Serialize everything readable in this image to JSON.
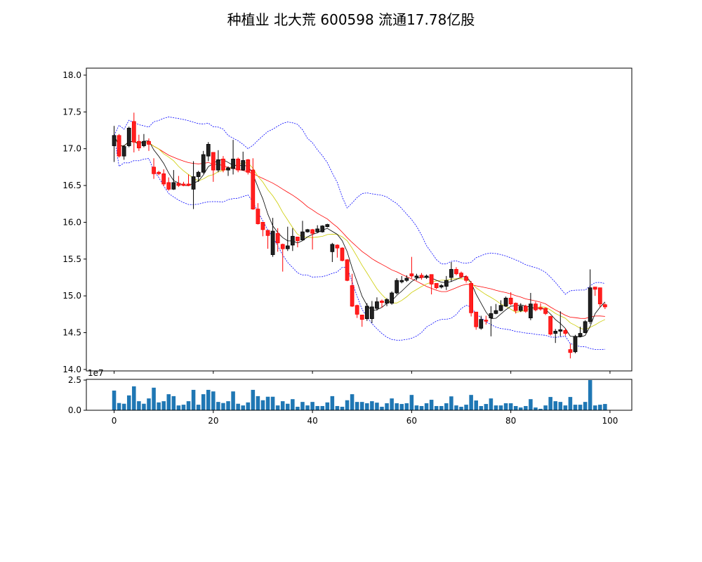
{
  "chart_data": {
    "type": "candlestick",
    "title": "种植业 北大荒 600598 流通17.78亿股",
    "up_color": "#000000",
    "down_color": "#ff0000",
    "ma_colors": {
      "ma5": "#000000",
      "ma10": "#cccc00",
      "ma20": "#ff0000",
      "boll": "#0000ff"
    },
    "volume_color": "#1f77b4",
    "xlim": [
      -5.6,
      104.4
    ],
    "ylim": [
      13.98,
      18.095
    ],
    "yticks": [
      "14.0",
      "14.5",
      "15.0",
      "15.5",
      "16.0",
      "16.5",
      "17.0",
      "17.5",
      "18.0"
    ],
    "xticks": [
      "0",
      "20",
      "40",
      "60",
      "80",
      "100"
    ],
    "volume_ylim": [
      0,
      2.56
    ],
    "volume_yticks": [
      "0.0",
      "2.5"
    ],
    "volume_offset_label": "1e7",
    "ohlc": [
      [
        17.04,
        17.31,
        16.82,
        17.18
      ],
      [
        17.18,
        17.2,
        16.88,
        16.9
      ],
      [
        16.9,
        17.05,
        16.85,
        17.03
      ],
      [
        17.04,
        17.3,
        17.02,
        17.28
      ],
      [
        17.37,
        17.49,
        16.95,
        17.09
      ],
      [
        17.1,
        17.19,
        16.97,
        17.01
      ],
      [
        17.04,
        17.2,
        17.02,
        17.1
      ],
      [
        17.1,
        17.14,
        16.97,
        17.06
      ],
      [
        16.75,
        16.87,
        16.59,
        16.66
      ],
      [
        16.68,
        16.7,
        16.64,
        16.66
      ],
      [
        16.66,
        16.72,
        16.49,
        16.52
      ],
      [
        16.54,
        16.61,
        16.43,
        16.45
      ],
      [
        16.45,
        16.71,
        16.44,
        16.54
      ],
      [
        16.53,
        16.63,
        16.48,
        16.5
      ],
      [
        16.52,
        16.55,
        16.49,
        16.5
      ],
      [
        16.52,
        16.65,
        16.49,
        16.5
      ],
      [
        16.45,
        16.83,
        16.18,
        16.62
      ],
      [
        16.62,
        16.7,
        16.55,
        16.68
      ],
      [
        16.68,
        16.97,
        16.66,
        16.92
      ],
      [
        16.9,
        17.09,
        16.83,
        17.06
      ],
      [
        16.95,
        16.95,
        16.55,
        16.71
      ],
      [
        16.71,
        16.98,
        16.68,
        16.85
      ],
      [
        16.86,
        16.9,
        16.68,
        16.71
      ],
      [
        16.71,
        16.76,
        16.63,
        16.74
      ],
      [
        16.73,
        17.12,
        16.65,
        16.86
      ],
      [
        16.86,
        16.88,
        16.68,
        16.71
      ],
      [
        16.71,
        16.96,
        16.7,
        16.84
      ],
      [
        16.85,
        16.86,
        16.65,
        16.68
      ],
      [
        16.71,
        16.87,
        16.17,
        16.18
      ],
      [
        16.18,
        16.26,
        15.97,
        15.98
      ],
      [
        16.0,
        16.0,
        15.81,
        15.9
      ],
      [
        15.89,
        15.89,
        15.64,
        15.82
      ],
      [
        15.56,
        16.06,
        15.53,
        15.88
      ],
      [
        15.85,
        15.92,
        15.6,
        15.72
      ],
      [
        15.7,
        15.71,
        15.33,
        15.64
      ],
      [
        15.64,
        15.94,
        15.61,
        15.68
      ],
      [
        15.69,
        15.92,
        15.61,
        15.81
      ],
      [
        15.8,
        15.8,
        15.66,
        15.75
      ],
      [
        15.76,
        16.02,
        15.76,
        15.87
      ],
      [
        15.87,
        15.91,
        15.86,
        15.9
      ],
      [
        15.9,
        15.91,
        15.63,
        15.85
      ],
      [
        15.87,
        15.96,
        15.86,
        15.91
      ],
      [
        15.87,
        15.96,
        15.86,
        15.95
      ],
      [
        15.94,
        15.98,
        15.93,
        15.97
      ],
      [
        15.6,
        15.72,
        15.46,
        15.7
      ],
      [
        15.69,
        15.7,
        15.52,
        15.65
      ],
      [
        15.65,
        15.66,
        15.47,
        15.48
      ],
      [
        15.49,
        15.5,
        15.2,
        15.21
      ],
      [
        15.14,
        15.3,
        14.85,
        14.86
      ],
      [
        14.87,
        14.88,
        14.7,
        14.75
      ],
      [
        14.74,
        14.74,
        14.58,
        14.68
      ],
      [
        14.69,
        14.9,
        14.66,
        14.86
      ],
      [
        14.69,
        14.93,
        14.63,
        14.85
      ],
      [
        14.83,
        14.98,
        14.8,
        14.92
      ],
      [
        14.93,
        14.95,
        14.84,
        14.91
      ],
      [
        14.9,
        14.97,
        14.86,
        14.95
      ],
      [
        14.9,
        15.06,
        14.88,
        15.04
      ],
      [
        15.04,
        15.24,
        15.02,
        15.21
      ],
      [
        15.19,
        15.27,
        15.17,
        15.21
      ],
      [
        15.21,
        15.28,
        15.19,
        15.24
      ],
      [
        15.3,
        15.53,
        15.24,
        15.27
      ],
      [
        15.25,
        15.3,
        15.21,
        15.27
      ],
      [
        15.28,
        15.31,
        15.22,
        15.25
      ],
      [
        15.25,
        15.29,
        15.23,
        15.27
      ],
      [
        15.29,
        15.29,
        15.02,
        15.16
      ],
      [
        15.17,
        15.17,
        15.09,
        15.11
      ],
      [
        15.12,
        15.16,
        15.1,
        15.14
      ],
      [
        15.13,
        15.27,
        15.08,
        15.21
      ],
      [
        15.25,
        15.46,
        15.19,
        15.36
      ],
      [
        15.36,
        15.39,
        15.28,
        15.3
      ],
      [
        15.31,
        15.33,
        15.24,
        15.26
      ],
      [
        15.26,
        15.28,
        15.18,
        15.21
      ],
      [
        15.17,
        15.2,
        14.72,
        14.77
      ],
      [
        14.78,
        14.78,
        14.54,
        14.58
      ],
      [
        14.56,
        14.73,
        14.54,
        14.68
      ],
      [
        14.67,
        14.73,
        14.61,
        14.66
      ],
      [
        14.7,
        14.86,
        14.45,
        14.76
      ],
      [
        14.76,
        14.89,
        14.75,
        14.8
      ],
      [
        14.8,
        14.94,
        14.79,
        14.87
      ],
      [
        14.86,
        14.99,
        14.85,
        14.97
      ],
      [
        14.97,
        15.05,
        14.87,
        14.89
      ],
      [
        14.9,
        14.91,
        14.76,
        14.8
      ],
      [
        14.8,
        14.9,
        14.78,
        14.86
      ],
      [
        14.86,
        14.88,
        14.77,
        14.79
      ],
      [
        14.7,
        15.04,
        14.67,
        14.89
      ],
      [
        14.89,
        14.92,
        14.79,
        14.81
      ],
      [
        14.84,
        14.9,
        14.8,
        14.82
      ],
      [
        14.83,
        14.84,
        14.74,
        14.76
      ],
      [
        14.72,
        14.73,
        14.46,
        14.48
      ],
      [
        14.49,
        14.55,
        14.36,
        14.52
      ],
      [
        14.52,
        14.79,
        14.45,
        14.54
      ],
      [
        14.53,
        14.56,
        14.46,
        14.49
      ],
      [
        14.27,
        14.35,
        14.15,
        14.23
      ],
      [
        14.24,
        14.47,
        14.22,
        14.45
      ],
      [
        14.45,
        14.58,
        14.44,
        14.49
      ],
      [
        14.5,
        14.67,
        14.49,
        14.65
      ],
      [
        14.65,
        15.36,
        14.62,
        15.11
      ],
      [
        15.12,
        15.12,
        15.0,
        15.09
      ],
      [
        15.11,
        15.11,
        14.85,
        14.89
      ],
      [
        14.88,
        14.9,
        14.82,
        14.85
      ]
    ],
    "volume": [
      1.63,
      0.6,
      0.54,
      1.23,
      1.98,
      0.75,
      0.54,
      0.98,
      1.87,
      0.65,
      0.75,
      1.33,
      1.17,
      0.4,
      0.46,
      0.75,
      1.69,
      0.46,
      1.33,
      1.69,
      1.56,
      0.69,
      0.6,
      0.75,
      1.56,
      0.54,
      0.4,
      0.65,
      1.69,
      1.17,
      0.83,
      1.12,
      1.12,
      0.4,
      0.75,
      0.54,
      0.92,
      0.29,
      0.69,
      0.4,
      0.69,
      0.35,
      0.35,
      0.65,
      1.17,
      0.35,
      0.29,
      0.83,
      1.33,
      0.69,
      0.69,
      0.58,
      0.75,
      0.63,
      0.29,
      0.58,
      0.98,
      0.58,
      0.52,
      0.58,
      1.27,
      0.4,
      0.35,
      0.58,
      0.87,
      0.35,
      0.35,
      0.58,
      1.15,
      0.4,
      0.29,
      0.46,
      1.27,
      0.81,
      0.35,
      0.52,
      0.98,
      0.4,
      0.4,
      0.58,
      0.58,
      0.35,
      0.23,
      0.35,
      0.92,
      0.23,
      0.12,
      0.4,
      1.1,
      0.75,
      0.69,
      0.4,
      1.1,
      0.46,
      0.46,
      0.69,
      2.5,
      0.4,
      0.46,
      0.52
    ]
  }
}
